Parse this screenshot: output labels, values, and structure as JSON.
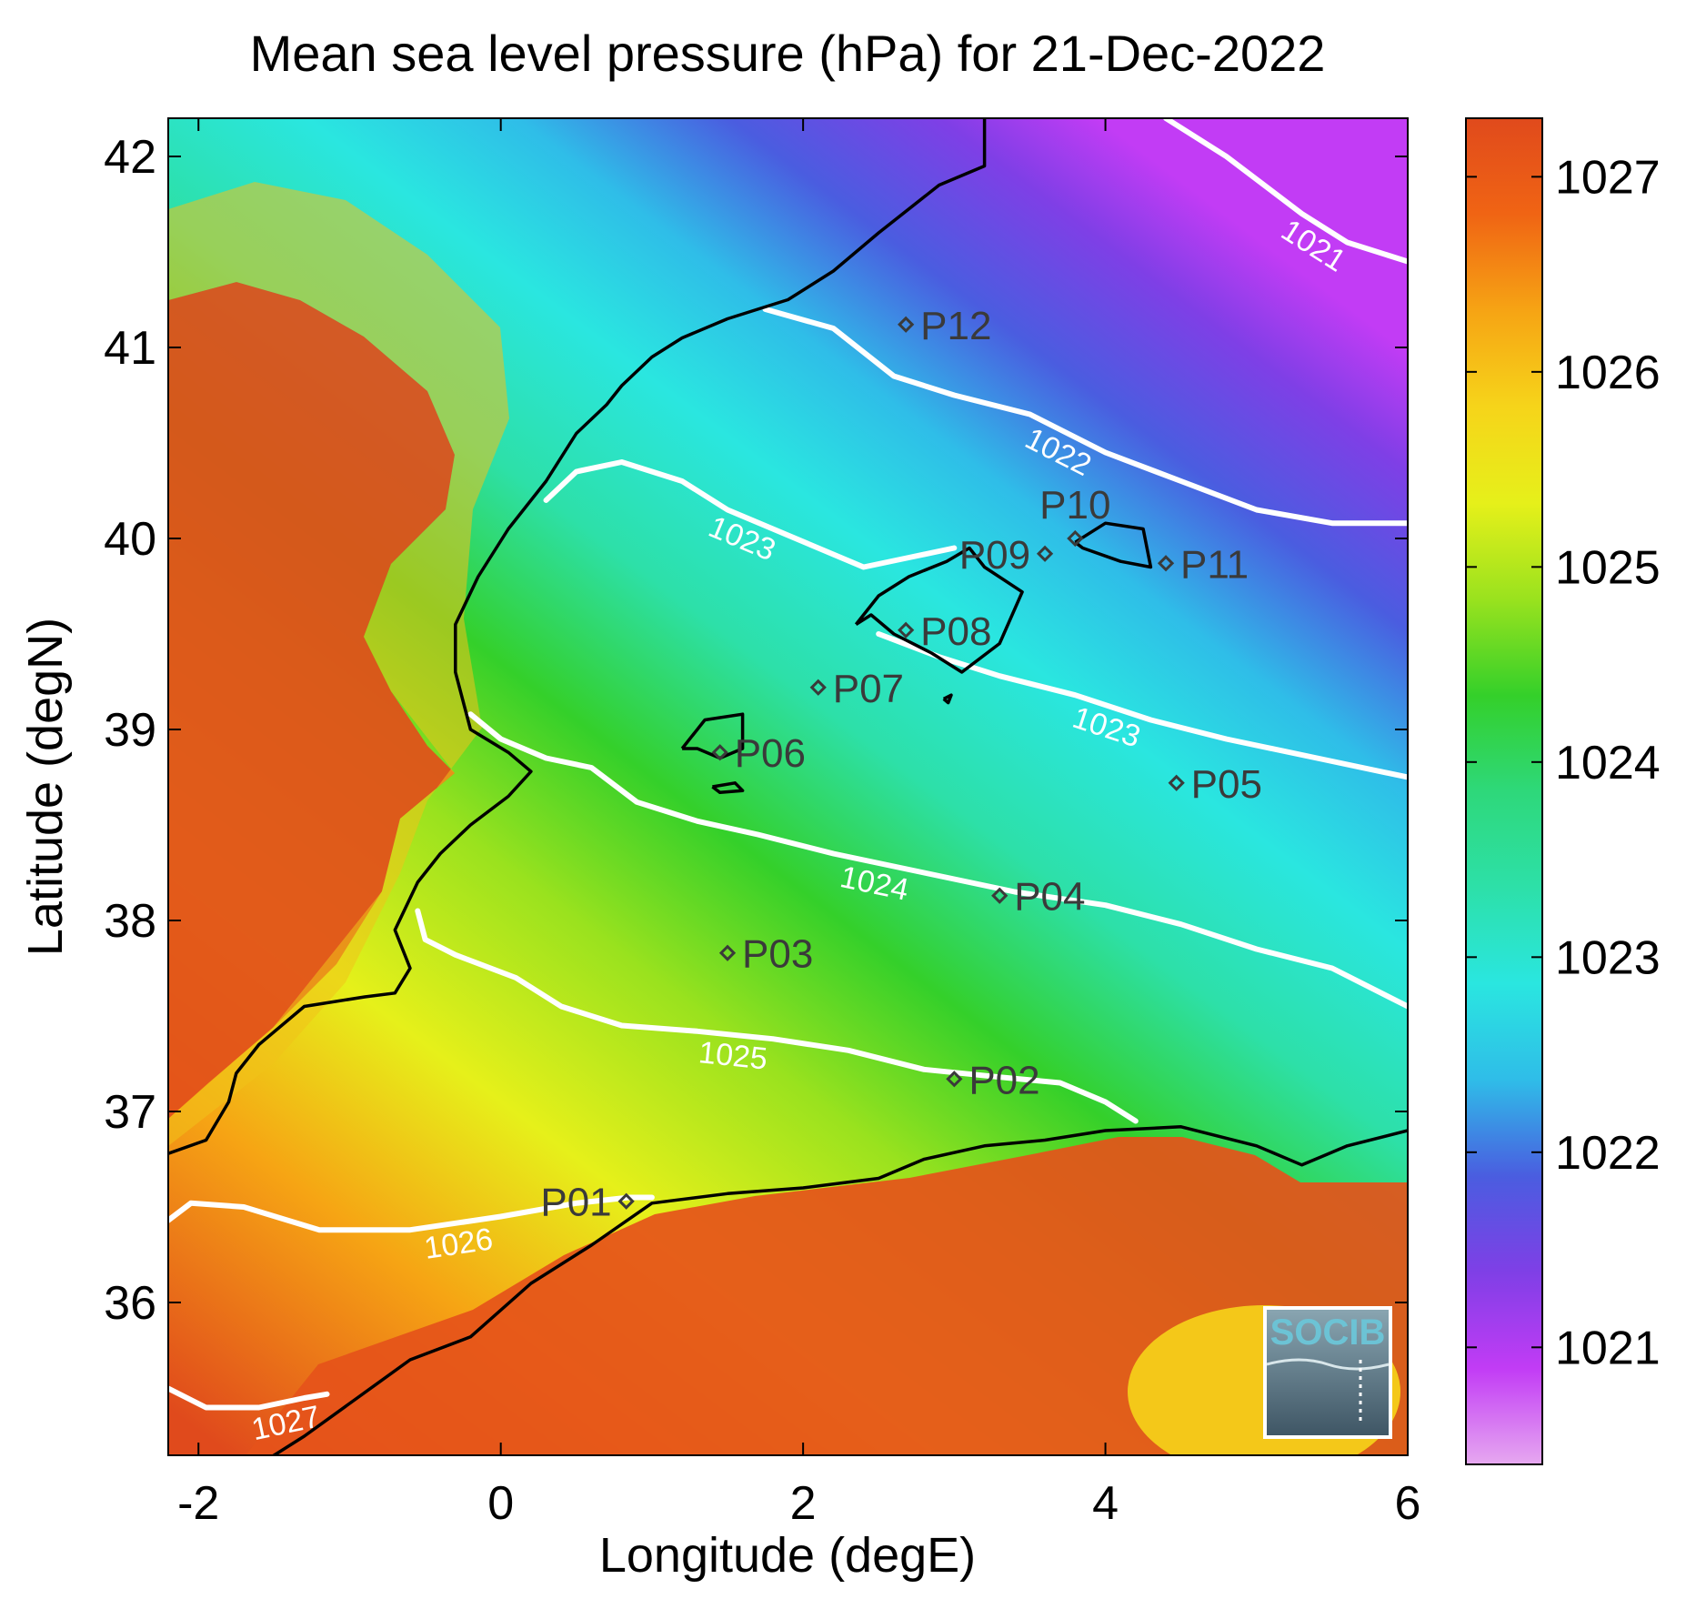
{
  "title": "Mean sea level pressure (hPa) for 21-Dec-2022",
  "xlabel": "Longitude (degE)",
  "ylabel": "Latitude (degN)",
  "xlim": [
    -2.2,
    6
  ],
  "ylim": [
    35.2,
    42.2
  ],
  "xticks": [
    -2,
    0,
    2,
    4,
    6
  ],
  "yticks": [
    36,
    37,
    38,
    39,
    40,
    41,
    42
  ],
  "colorbar": {
    "range": [
      1020.4,
      1027.3
    ],
    "ticks": [
      1021,
      1022,
      1023,
      1024,
      1025,
      1026,
      1027
    ],
    "colormap": [
      "#e6a8f0",
      "#c23cf5",
      "#7f3fe6",
      "#4a5de0",
      "#2fbde8",
      "#2ae6e0",
      "#2de0a8",
      "#2ed87a",
      "#34d02a",
      "#9ae21e",
      "#e6f01a",
      "#f6d41a",
      "#f6a414",
      "#f06414",
      "#e04a1c"
    ]
  },
  "contours": [
    {
      "label": "1021",
      "points": [
        [
          4.4,
          42.2
        ],
        [
          4.8,
          42.0
        ],
        [
          5.3,
          41.7
        ],
        [
          5.6,
          41.55
        ],
        [
          6.0,
          41.45
        ]
      ]
    },
    {
      "label": "1022",
      "points": [
        [
          1.75,
          41.2
        ],
        [
          2.2,
          41.1
        ],
        [
          2.6,
          40.85
        ],
        [
          3.0,
          40.75
        ],
        [
          3.5,
          40.65
        ],
        [
          4.0,
          40.45
        ],
        [
          4.5,
          40.3
        ],
        [
          5.0,
          40.15
        ],
        [
          5.5,
          40.08
        ],
        [
          6.0,
          40.08
        ]
      ]
    },
    {
      "label": "1023",
      "points": [
        [
          0.3,
          40.2
        ],
        [
          0.5,
          40.35
        ],
        [
          0.8,
          40.4
        ],
        [
          1.2,
          40.3
        ],
        [
          1.5,
          40.15
        ],
        [
          1.8,
          40.05
        ],
        [
          2.1,
          39.95
        ],
        [
          2.4,
          39.85
        ],
        [
          2.7,
          39.9
        ],
        [
          3.0,
          39.95
        ]
      ]
    },
    {
      "label": "1023",
      "points": [
        [
          2.5,
          39.5
        ],
        [
          2.9,
          39.38
        ],
        [
          3.3,
          39.28
        ],
        [
          3.8,
          39.18
        ],
        [
          4.3,
          39.05
        ],
        [
          4.8,
          38.95
        ],
        [
          5.4,
          38.85
        ],
        [
          6.0,
          38.75
        ]
      ]
    },
    {
      "label": "1024",
      "points": [
        [
          -0.2,
          39.08
        ],
        [
          0.0,
          38.95
        ],
        [
          0.3,
          38.85
        ],
        [
          0.6,
          38.8
        ],
        [
          0.9,
          38.62
        ],
        [
          1.3,
          38.52
        ],
        [
          1.7,
          38.45
        ],
        [
          2.2,
          38.35
        ],
        [
          2.8,
          38.25
        ],
        [
          3.4,
          38.15
        ],
        [
          4.0,
          38.08
        ],
        [
          4.5,
          37.98
        ],
        [
          5.0,
          37.85
        ],
        [
          5.5,
          37.75
        ],
        [
          6.0,
          37.55
        ]
      ]
    },
    {
      "label": "1025",
      "points": [
        [
          -0.55,
          38.05
        ],
        [
          -0.5,
          37.9
        ],
        [
          -0.3,
          37.82
        ],
        [
          0.1,
          37.7
        ],
        [
          0.4,
          37.55
        ],
        [
          0.8,
          37.45
        ],
        [
          1.3,
          37.42
        ],
        [
          1.8,
          37.38
        ],
        [
          2.3,
          37.32
        ],
        [
          2.8,
          37.22
        ],
        [
          3.3,
          37.18
        ],
        [
          3.7,
          37.15
        ],
        [
          4.0,
          37.05
        ],
        [
          4.2,
          36.95
        ]
      ]
    },
    {
      "label": "1026",
      "points": [
        [
          -2.2,
          36.43
        ],
        [
          -2.05,
          36.52
        ],
        [
          -1.7,
          36.5
        ],
        [
          -1.2,
          36.38
        ],
        [
          -0.6,
          36.38
        ],
        [
          0.0,
          36.45
        ],
        [
          0.5,
          36.52
        ],
        [
          0.85,
          36.55
        ],
        [
          1.0,
          36.55
        ]
      ]
    },
    {
      "label": "1027",
      "points": [
        [
          -2.2,
          35.55
        ],
        [
          -1.95,
          35.45
        ],
        [
          -1.6,
          35.45
        ],
        [
          -1.3,
          35.5
        ],
        [
          -1.15,
          35.52
        ]
      ]
    }
  ],
  "coastlines": [
    {
      "name": "iberia",
      "points": [
        [
          -2.2,
          36.78
        ],
        [
          -1.95,
          36.85
        ],
        [
          -1.8,
          37.05
        ],
        [
          -1.75,
          37.2
        ],
        [
          -1.6,
          37.35
        ],
        [
          -1.3,
          37.55
        ],
        [
          -0.9,
          37.6
        ],
        [
          -0.7,
          37.62
        ],
        [
          -0.6,
          37.75
        ],
        [
          -0.7,
          37.95
        ],
        [
          -0.55,
          38.2
        ],
        [
          -0.4,
          38.35
        ],
        [
          -0.2,
          38.5
        ],
        [
          0.05,
          38.65
        ],
        [
          0.2,
          38.78
        ],
        [
          0.05,
          38.88
        ],
        [
          -0.2,
          39.0
        ],
        [
          -0.3,
          39.3
        ],
        [
          -0.3,
          39.55
        ],
        [
          -0.15,
          39.8
        ],
        [
          0.05,
          40.05
        ],
        [
          0.3,
          40.3
        ],
        [
          0.5,
          40.55
        ],
        [
          0.7,
          40.7
        ],
        [
          0.8,
          40.8
        ],
        [
          1.0,
          40.95
        ],
        [
          1.2,
          41.05
        ],
        [
          1.5,
          41.15
        ],
        [
          1.9,
          41.25
        ],
        [
          2.2,
          41.4
        ],
        [
          2.5,
          41.6
        ],
        [
          2.9,
          41.85
        ],
        [
          3.2,
          41.95
        ],
        [
          3.2,
          42.2
        ]
      ]
    },
    {
      "name": "africa",
      "points": [
        [
          -1.6,
          35.15
        ],
        [
          -1.3,
          35.3
        ],
        [
          -0.95,
          35.5
        ],
        [
          -0.6,
          35.7
        ],
        [
          -0.2,
          35.82
        ],
        [
          0.2,
          36.1
        ],
        [
          0.6,
          36.3
        ],
        [
          1.0,
          36.52
        ],
        [
          1.5,
          36.57
        ],
        [
          2.0,
          36.6
        ],
        [
          2.5,
          36.65
        ],
        [
          2.8,
          36.75
        ],
        [
          3.2,
          36.82
        ],
        [
          3.6,
          36.85
        ],
        [
          4.0,
          36.9
        ],
        [
          4.5,
          36.92
        ],
        [
          5.0,
          36.82
        ],
        [
          5.3,
          36.72
        ],
        [
          5.6,
          36.82
        ],
        [
          6.0,
          36.9
        ]
      ]
    },
    {
      "name": "mallorca",
      "points": [
        [
          2.35,
          39.55
        ],
        [
          2.5,
          39.7
        ],
        [
          2.7,
          39.8
        ],
        [
          2.95,
          39.88
        ],
        [
          3.1,
          39.95
        ],
        [
          3.2,
          39.85
        ],
        [
          3.45,
          39.72
        ],
        [
          3.3,
          39.45
        ],
        [
          3.05,
          39.3
        ],
        [
          2.85,
          39.4
        ],
        [
          2.6,
          39.5
        ],
        [
          2.45,
          39.6
        ],
        [
          2.35,
          39.55
        ]
      ]
    },
    {
      "name": "menorca",
      "points": [
        [
          3.8,
          39.98
        ],
        [
          4.0,
          40.08
        ],
        [
          4.25,
          40.05
        ],
        [
          4.3,
          39.85
        ],
        [
          4.1,
          39.88
        ],
        [
          3.85,
          39.95
        ],
        [
          3.8,
          39.98
        ]
      ]
    },
    {
      "name": "ibiza",
      "points": [
        [
          1.2,
          38.9
        ],
        [
          1.35,
          39.05
        ],
        [
          1.6,
          39.08
        ],
        [
          1.6,
          38.9
        ],
        [
          1.45,
          38.85
        ],
        [
          1.3,
          38.9
        ],
        [
          1.2,
          38.9
        ]
      ]
    },
    {
      "name": "formentera",
      "points": [
        [
          1.4,
          38.7
        ],
        [
          1.55,
          38.72
        ],
        [
          1.6,
          38.68
        ],
        [
          1.45,
          38.67
        ],
        [
          1.4,
          38.7
        ]
      ]
    },
    {
      "name": "cabrera",
      "points": [
        [
          2.93,
          39.16
        ],
        [
          2.98,
          39.18
        ],
        [
          2.96,
          39.14
        ],
        [
          2.93,
          39.16
        ]
      ]
    }
  ],
  "stations": [
    {
      "label": "P01",
      "lon": 0.83,
      "lat": 36.53,
      "label_side": "left"
    },
    {
      "label": "P02",
      "lon": 3.0,
      "lat": 37.17,
      "label_side": "right"
    },
    {
      "label": "P03",
      "lon": 1.5,
      "lat": 37.83,
      "label_side": "right"
    },
    {
      "label": "P04",
      "lon": 3.3,
      "lat": 38.13,
      "label_side": "right"
    },
    {
      "label": "P05",
      "lon": 4.47,
      "lat": 38.72,
      "label_side": "right"
    },
    {
      "label": "P06",
      "lon": 1.45,
      "lat": 38.88,
      "label_side": "right"
    },
    {
      "label": "P07",
      "lon": 2.1,
      "lat": 39.22,
      "label_side": "right"
    },
    {
      "label": "P08",
      "lon": 2.68,
      "lat": 39.52,
      "label_side": "right"
    },
    {
      "label": "P09",
      "lon": 3.6,
      "lat": 39.92,
      "label_side": "left"
    },
    {
      "label": "P10",
      "lon": 3.8,
      "lat": 40.0,
      "label_side": "above"
    },
    {
      "label": "P11",
      "lon": 4.4,
      "lat": 39.87,
      "label_side": "right"
    },
    {
      "label": "P12",
      "lon": 2.68,
      "lat": 41.12,
      "label_side": "right"
    }
  ],
  "logo": {
    "text": "SOCIB",
    "bg_top": "#8aa6b2",
    "bg_bottom": "#3e5564",
    "text_color": "#6cc3d5"
  }
}
